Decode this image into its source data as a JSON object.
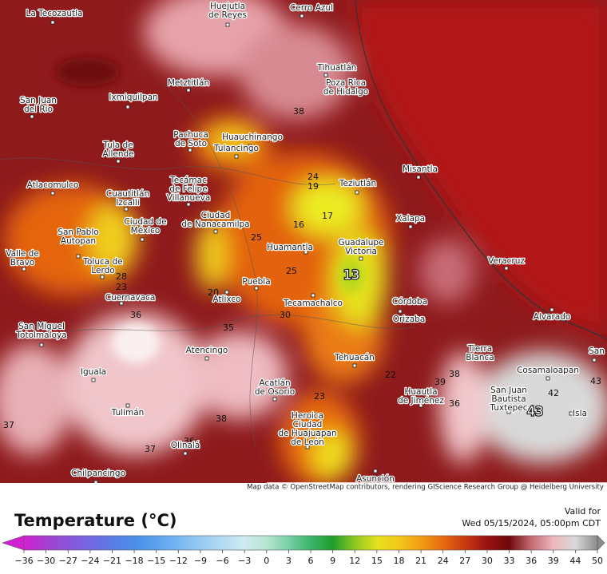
{
  "map": {
    "cities": [
      [
        "La Tecozautla"
      ],
      [
        "Huejutla",
        "de Reyes"
      ],
      [
        "Cerro Azul"
      ],
      [
        "Tihuatlán"
      ],
      [
        "Poza Rica",
        "de Hidalgo"
      ],
      [
        "San Juan",
        "del Río"
      ],
      [
        "Ixmiquilpan"
      ],
      [
        "Metztitlán"
      ],
      [
        "Pachuca",
        "de Soto"
      ],
      [
        "Huauchinango"
      ],
      [
        "Tulancingo"
      ],
      [
        "Tula de",
        "Allende"
      ],
      [
        "Misantla"
      ],
      [
        "Tecámac",
        "de Felipe",
        "Villanueva"
      ],
      [
        "Teziutlán"
      ],
      [
        "Atlacomulco"
      ],
      [
        "Cuautitlán",
        "Izcalli"
      ],
      [
        "Xalapa"
      ],
      [
        "Ciudad de",
        "México"
      ],
      [
        "Ciudad",
        "de Nanacamilpa"
      ],
      [
        "San Pablo",
        "Autopan"
      ],
      [
        "Guadalupe",
        "Victoria"
      ],
      [
        "Huamantla"
      ],
      [
        "Valle de",
        "Bravo"
      ],
      [
        "Toluca de",
        "Lerdo"
      ],
      [
        "Veracruz"
      ],
      [
        "Puebla"
      ],
      [
        "Cuernavaca"
      ],
      [
        "Atlixco"
      ],
      [
        "Tecamachalco"
      ],
      [
        "Córdoba"
      ],
      [
        "Orizaba"
      ],
      [
        "Alvarado"
      ],
      [
        "San Miguel",
        "Totolmaloya"
      ],
      [
        "Atencingo"
      ],
      [
        "Tierra",
        "Blanca"
      ],
      [
        "Tehuacán"
      ],
      [
        "San"
      ],
      [
        "Iguala"
      ],
      [
        "Cosamaloapan"
      ],
      [
        "Acatlán",
        "de Osorio"
      ],
      [
        "Huautla",
        "de Jiménez"
      ],
      [
        "San Juan",
        "Bautista",
        "Tuxtepec"
      ],
      [
        "Tulimán"
      ],
      [
        "Isla"
      ],
      [
        "Heroica",
        "Ciudad",
        "de Huajuapan",
        "de León"
      ],
      [
        "Olinalá"
      ],
      [
        "Asunción"
      ],
      [
        "Chilpancingo"
      ]
    ],
    "contour_labels": [
      "38",
      "24",
      "19",
      "17",
      "16",
      "25",
      "25",
      "13",
      "28",
      "23",
      "20",
      "30",
      "35",
      "36",
      "22",
      "38",
      "39",
      "36",
      "23",
      "42",
      "43",
      "43",
      "38",
      "37",
      "37",
      "36"
    ],
    "attribution": "Map data © OpenStreetMap contributors, rendering GIScience Research Group @ Heidelberg University"
  },
  "legend": {
    "title": "Temperature (°C)",
    "valid_label": "Valid for",
    "valid_time": "Wed 05/15/2024, 05:00pm CDT",
    "ticks": [
      "−36",
      "−30",
      "−27",
      "−24",
      "−21",
      "−18",
      "−15",
      "−12",
      "−9",
      "−6",
      "−3",
      "0",
      "3",
      "6",
      "9",
      "12",
      "15",
      "18",
      "21",
      "24",
      "27",
      "30",
      "33",
      "36",
      "39",
      "44",
      "50"
    ],
    "colors": [
      "#d21fd2",
      "#a43fd0",
      "#8a55db",
      "#7468e2",
      "#5a7ce6",
      "#4a8ee8",
      "#5aa2ee",
      "#78b6f2",
      "#98cbf2",
      "#b4dbf2",
      "#cdebf0",
      "#b6e6d2",
      "#78cfa6",
      "#3cb46a",
      "#1f9d2c",
      "#8cc81e",
      "#e2e21e",
      "#f2c81c",
      "#f29c14",
      "#e66a10",
      "#c83a10",
      "#9a1212",
      "#6e0a0a",
      "#c26a72",
      "#eeb8be",
      "#d8d8d8",
      "#8c8c8c"
    ]
  }
}
